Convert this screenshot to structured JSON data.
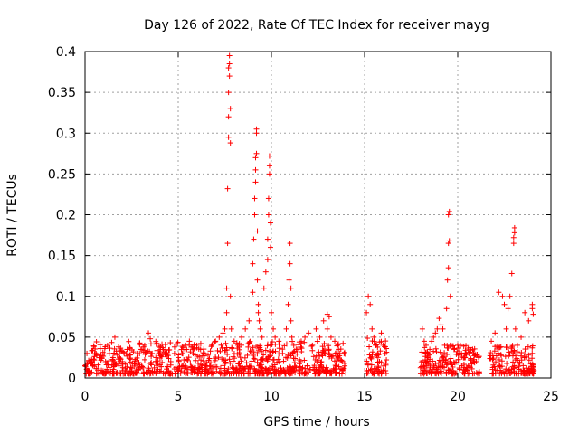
{
  "chart_data": {
    "type": "scatter",
    "title": "Day 126 of 2022, Rate Of TEC Index for receiver mayg",
    "xlabel": "GPS time / hours",
    "ylabel": "ROTI / TECUs",
    "xlim": [
      0,
      25
    ],
    "ylim": [
      0,
      0.4
    ],
    "xticks": [
      0,
      5,
      10,
      15,
      20,
      25
    ],
    "xtick_labels": [
      "0",
      "5",
      "10",
      "15",
      "20",
      "25"
    ],
    "yticks": [
      0,
      0.05,
      0.1,
      0.15,
      0.2,
      0.25,
      0.3,
      0.35,
      0.4
    ],
    "ytick_labels": [
      "0",
      "0.05",
      "0.1",
      "0.15",
      "0.2",
      "0.25",
      "0.3",
      "0.35",
      "0.4"
    ],
    "grid": true,
    "marker": "plus",
    "color": "#ff0000",
    "series": [
      {
        "name": "ROTI",
        "x": [
          0.0,
          0.1,
          0.2,
          0.3,
          0.5,
          0.7,
          0.9,
          1.1,
          1.3,
          1.5,
          1.6,
          1.8,
          2.0,
          2.2,
          2.4,
          2.6,
          2.8,
          3.0,
          3.2,
          3.4,
          3.5,
          3.6,
          3.8,
          4.0,
          4.2,
          4.4,
          4.6,
          4.8,
          5.0,
          5.2,
          5.4,
          5.6,
          5.8,
          6.0,
          6.2,
          6.4,
          6.6,
          6.8,
          7.0,
          7.2,
          7.4,
          7.5,
          7.6,
          7.6,
          7.65,
          7.65,
          7.7,
          7.7,
          7.7,
          7.7,
          7.75,
          7.75,
          7.75,
          7.8,
          7.8,
          7.8,
          7.85,
          8.0,
          8.2,
          8.4,
          8.6,
          8.8,
          9.0,
          9.0,
          9.05,
          9.1,
          9.1,
          9.15,
          9.15,
          9.15,
          9.2,
          9.2,
          9.2,
          9.25,
          9.25,
          9.3,
          9.3,
          9.35,
          9.4,
          9.5,
          9.6,
          9.7,
          9.8,
          9.8,
          9.85,
          9.85,
          9.9,
          9.9,
          9.9,
          9.95,
          9.95,
          10.0,
          10.1,
          10.2,
          10.4,
          10.6,
          10.8,
          10.9,
          10.95,
          11.0,
          11.0,
          11.05,
          11.05,
          11.1,
          11.2,
          11.4,
          11.6,
          11.8,
          12.0,
          12.2,
          12.4,
          12.6,
          12.8,
          13.0,
          13.0,
          13.1,
          13.2,
          13.4,
          13.6,
          13.8,
          13.9,
          15.1,
          15.2,
          15.3,
          15.4,
          15.5,
          15.6,
          15.7,
          15.8,
          15.9,
          16.0,
          16.1,
          18.1,
          18.2,
          18.3,
          18.4,
          18.5,
          18.6,
          18.7,
          18.8,
          18.9,
          19.0,
          19.1,
          19.2,
          19.3,
          19.4,
          19.45,
          19.5,
          19.5,
          19.5,
          19.55,
          19.55,
          19.6,
          19.6,
          19.8,
          20.0,
          20.2,
          20.4,
          20.6,
          20.8,
          21.0,
          21.8,
          22.0,
          22.2,
          22.4,
          22.5,
          22.6,
          22.7,
          22.8,
          22.9,
          23.0,
          23.0,
          23.05,
          23.05,
          23.1,
          23.2,
          23.4,
          23.6,
          23.8,
          24.0,
          24.0,
          24.05
        ],
        "y": [
          0.015,
          0.03,
          0.02,
          0.018,
          0.022,
          0.016,
          0.024,
          0.02,
          0.03,
          0.025,
          0.05,
          0.038,
          0.02,
          0.03,
          0.028,
          0.032,
          0.03,
          0.035,
          0.04,
          0.055,
          0.048,
          0.03,
          0.025,
          0.03,
          0.035,
          0.028,
          0.02,
          0.03,
          0.025,
          0.03,
          0.04,
          0.045,
          0.03,
          0.04,
          0.035,
          0.03,
          0.028,
          0.04,
          0.045,
          0.05,
          0.055,
          0.06,
          0.08,
          0.11,
          0.165,
          0.232,
          0.295,
          0.32,
          0.35,
          0.38,
          0.395,
          0.385,
          0.37,
          0.33,
          0.288,
          0.1,
          0.06,
          0.045,
          0.04,
          0.05,
          0.06,
          0.07,
          0.105,
          0.14,
          0.17,
          0.2,
          0.22,
          0.24,
          0.255,
          0.27,
          0.275,
          0.3,
          0.305,
          0.18,
          0.12,
          0.09,
          0.08,
          0.07,
          0.06,
          0.05,
          0.11,
          0.13,
          0.145,
          0.17,
          0.2,
          0.22,
          0.25,
          0.26,
          0.272,
          0.19,
          0.16,
          0.08,
          0.06,
          0.05,
          0.045,
          0.03,
          0.06,
          0.09,
          0.12,
          0.14,
          0.165,
          0.11,
          0.07,
          0.05,
          0.04,
          0.035,
          0.045,
          0.05,
          0.055,
          0.04,
          0.06,
          0.05,
          0.07,
          0.06,
          0.078,
          0.075,
          0.05,
          0.045,
          0.035,
          0.02,
          0.03,
          0.08,
          0.1,
          0.09,
          0.06,
          0.05,
          0.04,
          0.03,
          0.02,
          0.055,
          0.04,
          0.03,
          0.06,
          0.045,
          0.04,
          0.03,
          0.035,
          0.045,
          0.05,
          0.055,
          0.06,
          0.073,
          0.065,
          0.06,
          0.04,
          0.085,
          0.12,
          0.135,
          0.165,
          0.2,
          0.204,
          0.168,
          0.1,
          0.04,
          0.035,
          0.04,
          0.03,
          0.025,
          0.03,
          0.035,
          0.02,
          0.045,
          0.055,
          0.105,
          0.1,
          0.09,
          0.06,
          0.085,
          0.1,
          0.128,
          0.165,
          0.172,
          0.178,
          0.184,
          0.06,
          0.04,
          0.05,
          0.08,
          0.07,
          0.09,
          0.085,
          0.078
        ],
        "baseline_band": [
          {
            "x_range": [
              0.0,
              14.0
            ],
            "y_range": [
              0.005,
              0.045
            ]
          },
          {
            "x_range": [
              15.1,
              16.2
            ],
            "y_range": [
              0.005,
              0.05
            ]
          },
          {
            "x_range": [
              18.0,
              21.2
            ],
            "y_range": [
              0.005,
              0.04
            ]
          },
          {
            "x_range": [
              21.7,
              24.1
            ],
            "y_range": [
              0.005,
              0.04
            ]
          }
        ]
      }
    ]
  }
}
